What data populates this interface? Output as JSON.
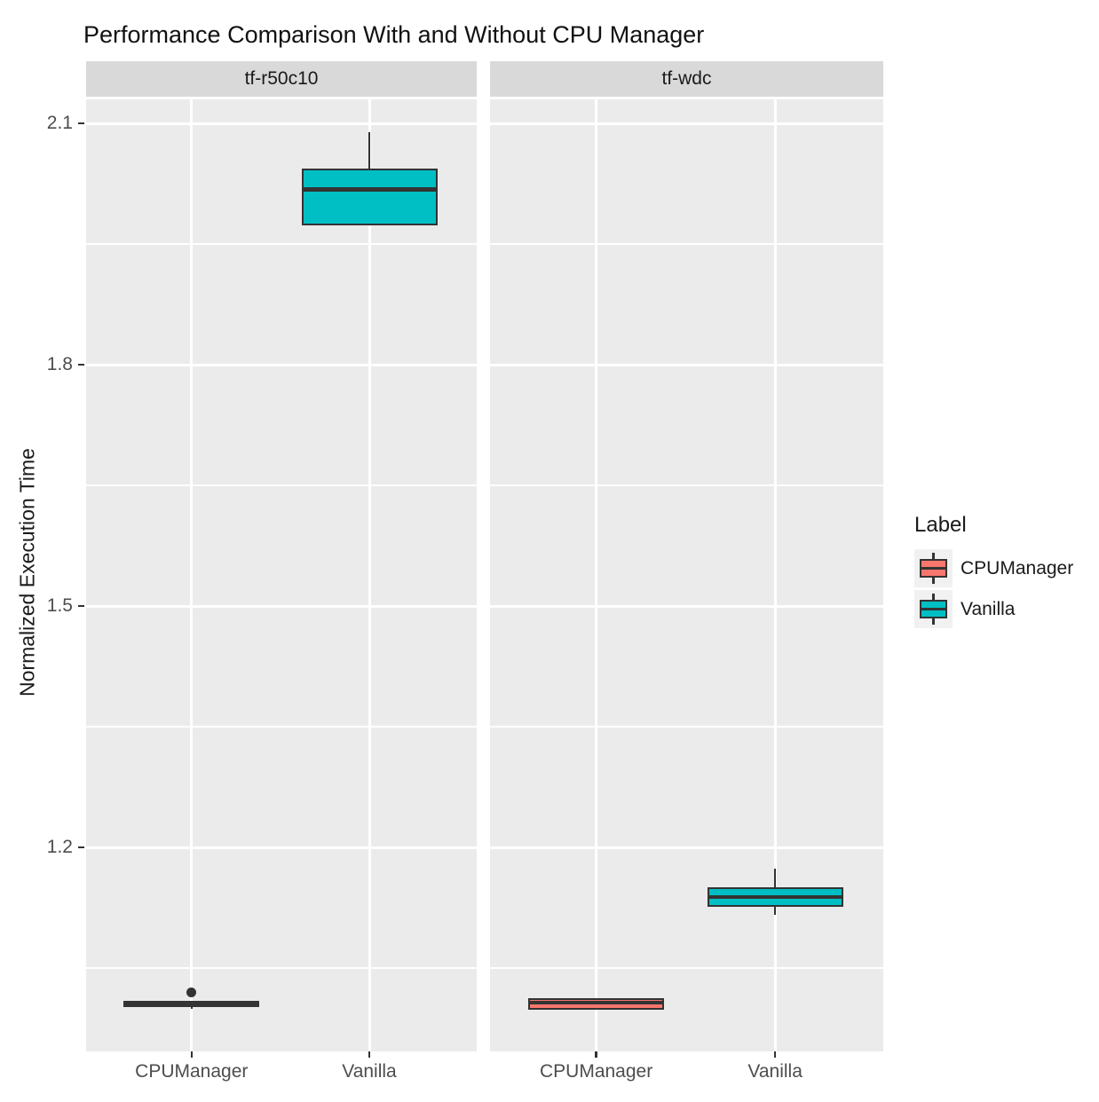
{
  "colors": {
    "panel_bg": "#EBEBEB",
    "strip_bg": "#D9D9D9",
    "gridline": "#FFFFFF",
    "box_border": "#333333",
    "legend_key_bg": "#F1F1F1",
    "axis_text": "#4D4D4D",
    "tick_mark": "#333333",
    "strip_text": "#1A1A1A"
  },
  "chart_data": {
    "type": "boxplot",
    "title": "Performance Comparison With and Without CPU Manager",
    "ylabel": "Normalized Execution Time",
    "xlabel": "",
    "y_ticks": [
      2.1,
      1.8,
      1.5,
      1.2
    ],
    "y_minor_gridlines": [
      1.95,
      1.65,
      1.35,
      1.05
    ],
    "ylim": [
      0.95,
      2.13
    ],
    "grid": true,
    "x_categories": [
      "CPUManager",
      "Vanilla"
    ],
    "legend": {
      "title": "Label",
      "position": "right",
      "entries": [
        {
          "label": "CPUManager",
          "color": "#F8766D"
        },
        {
          "label": "Vanilla",
          "color": "#00BFC4"
        }
      ]
    },
    "facets": [
      {
        "label": "tf-r50c10",
        "boxes": [
          {
            "group": "CPUManager",
            "whisker_low": 0.999,
            "q1": 1.002,
            "median": 1.006,
            "q3": 1.009,
            "whisker_high": 1.009,
            "outliers": [
              1.02
            ]
          },
          {
            "group": "Vanilla",
            "whisker_low": 1.973,
            "q1": 1.973,
            "median": 2.018,
            "q3": 2.044,
            "whisker_high": 2.089,
            "outliers": []
          }
        ]
      },
      {
        "label": "tf-wdc",
        "boxes": [
          {
            "group": "CPUManager",
            "whisker_low": 0.998,
            "q1": 0.998,
            "median": 1.007,
            "q3": 1.012,
            "whisker_high": 1.012,
            "outliers": []
          },
          {
            "group": "Vanilla",
            "whisker_low": 1.116,
            "q1": 1.126,
            "median": 1.138,
            "q3": 1.15,
            "whisker_high": 1.174,
            "outliers": []
          }
        ]
      }
    ]
  }
}
